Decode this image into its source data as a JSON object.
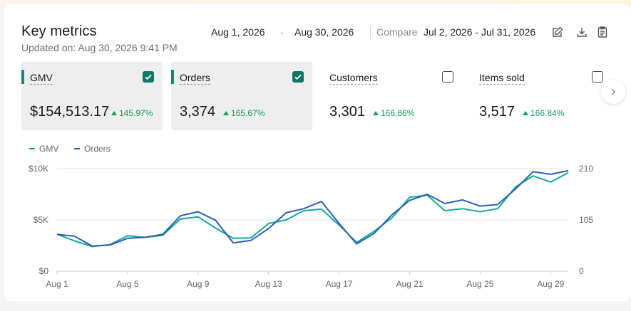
{
  "header": {
    "title": "Key metrics",
    "updated": "Updated on: Aug 30, 2026 9:41 PM"
  },
  "date_range": {
    "start": "Aug 1, 2026",
    "dash": "-",
    "end": "Aug 30, 2026",
    "compare_label": "Compare",
    "compare_range": "Jul 2, 2026 - Jul 31, 2026"
  },
  "toolbar_icons": [
    "edit-icon",
    "download-icon",
    "clipboard-icon"
  ],
  "metrics": [
    {
      "label": "GMV",
      "value": "$154,513.17",
      "change": "145.97%",
      "selected": true
    },
    {
      "label": "Orders",
      "value": "3,374",
      "change": "165.67%",
      "selected": true
    },
    {
      "label": "Customers",
      "value": "3,301",
      "change": "166.86%",
      "selected": false
    },
    {
      "label": "Items sold",
      "value": "3,517",
      "change": "166.84%",
      "selected": false
    }
  ],
  "colors": {
    "gmv": "#14a99a",
    "orders": "#2c5fb4",
    "positive": "#11a05a",
    "accent": "#0d8a7d"
  },
  "chart_data": {
    "type": "line",
    "legend": [
      "GMV",
      "Orders"
    ],
    "x_tick_labels": [
      "Aug 1",
      "Aug 5",
      "Aug 9",
      "Aug 13",
      "Aug 17",
      "Aug 21",
      "Aug 25",
      "Aug 29"
    ],
    "y_left_ticks": [
      "$0",
      "$5K",
      "$10K"
    ],
    "y_right_ticks": [
      "0",
      "105",
      "210"
    ],
    "y_left_range": [
      0,
      10000
    ],
    "y_right_range": [
      0,
      210
    ],
    "x": [
      "Aug 1",
      "Aug 2",
      "Aug 3",
      "Aug 4",
      "Aug 5",
      "Aug 6",
      "Aug 7",
      "Aug 8",
      "Aug 9",
      "Aug 10",
      "Aug 11",
      "Aug 12",
      "Aug 13",
      "Aug 14",
      "Aug 15",
      "Aug 16",
      "Aug 17",
      "Aug 18",
      "Aug 19",
      "Aug 20",
      "Aug 21",
      "Aug 22",
      "Aug 23",
      "Aug 24",
      "Aug 25",
      "Aug 26",
      "Aug 27",
      "Aug 28",
      "Aug 29",
      "Aug 30"
    ],
    "series": [
      {
        "name": "GMV",
        "axis": "left",
        "values": [
          3600,
          2950,
          2400,
          2600,
          3450,
          3300,
          3500,
          5100,
          5300,
          4200,
          3200,
          3250,
          4650,
          5000,
          5900,
          6050,
          4500,
          2800,
          3900,
          5200,
          7200,
          7400,
          5900,
          6100,
          5800,
          6100,
          8200,
          9300,
          8700,
          9600
        ]
      },
      {
        "name": "Orders",
        "axis": "left",
        "values": [
          3600,
          3400,
          2450,
          2550,
          3200,
          3300,
          3600,
          5400,
          5800,
          4950,
          2750,
          3000,
          4150,
          5700,
          6100,
          6800,
          4650,
          2650,
          3700,
          5500,
          6900,
          7500,
          6600,
          6950,
          6350,
          6500,
          8000,
          9700,
          9450,
          9800
        ]
      }
    ],
    "grid": true
  }
}
